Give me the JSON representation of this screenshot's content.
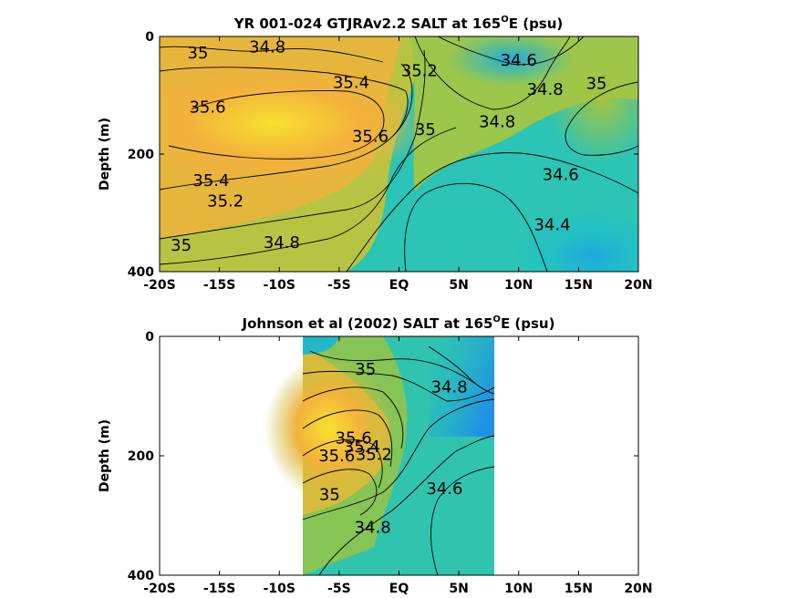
{
  "chart_data": [
    {
      "type": "heatmap",
      "title_main": "YR 001-024 GTJRAv2.2 SALT at 165",
      "title_sup": "O",
      "title_tail": "E (psu)",
      "ylabel": "Depth (m)",
      "xlabel": "",
      "x_ticks": [
        "-20S",
        "-15S",
        "-10S",
        "-5S",
        "EQ",
        "5N",
        "10N",
        "15N",
        "20N"
      ],
      "x_tick_values": [
        -20,
        -15,
        -10,
        -5,
        0,
        5,
        10,
        15,
        20
      ],
      "y_ticks": [
        "0",
        "200",
        "400"
      ],
      "y_tick_values": [
        0,
        200,
        400
      ],
      "xlim": [
        -20,
        20
      ],
      "ylim": [
        0,
        400
      ],
      "y_reversed": true,
      "data_lon_range": [
        -20,
        20
      ],
      "colormap": [
        "#1e90e8",
        "#21b8c8",
        "#2ac6a8",
        "#7ec85a",
        "#c4c03a",
        "#f0b03a",
        "#f8e030"
      ],
      "salinity_scale": [
        34.2,
        35.9
      ],
      "contour_levels": [
        34.4,
        34.6,
        34.8,
        35,
        35.2,
        35.4,
        35.6
      ],
      "contour_labels": [
        {
          "text": "35",
          "lon": -16.8,
          "depth": 28
        },
        {
          "text": "34.8",
          "lon": -11,
          "depth": 18
        },
        {
          "text": "35.6",
          "lon": -16,
          "depth": 120
        },
        {
          "text": "35.4",
          "lon": -4,
          "depth": 78
        },
        {
          "text": "35.2",
          "lon": 1.7,
          "depth": 58
        },
        {
          "text": "35.6",
          "lon": -2.4,
          "depth": 170
        },
        {
          "text": "35",
          "lon": 2.2,
          "depth": 158
        },
        {
          "text": "34.6",
          "lon": 10,
          "depth": 40
        },
        {
          "text": "34.8",
          "lon": 12.2,
          "depth": 90
        },
        {
          "text": "35",
          "lon": 16.5,
          "depth": 80
        },
        {
          "text": "34.8",
          "lon": 8.2,
          "depth": 145
        },
        {
          "text": "35.4",
          "lon": -15.7,
          "depth": 245
        },
        {
          "text": "35.2",
          "lon": -14.5,
          "depth": 280
        },
        {
          "text": "34.6",
          "lon": 13.5,
          "depth": 235
        },
        {
          "text": "34.4",
          "lon": 12.8,
          "depth": 320
        },
        {
          "text": "35",
          "lon": -18.2,
          "depth": 355
        },
        {
          "text": "34.8",
          "lon": -9.8,
          "depth": 350
        }
      ]
    },
    {
      "type": "heatmap",
      "title_main": "Johnson et al (2002) SALT at 165",
      "title_sup": "O",
      "title_tail": "E (psu)",
      "ylabel": "Depth (m)",
      "xlabel": "",
      "x_ticks": [
        "-20S",
        "-15S",
        "-10S",
        "-5S",
        "EQ",
        "5N",
        "10N",
        "15N",
        "20N"
      ],
      "x_tick_values": [
        -20,
        -15,
        -10,
        -5,
        0,
        5,
        10,
        15,
        20
      ],
      "y_ticks": [
        "0",
        "200",
        "400"
      ],
      "y_tick_values": [
        0,
        200,
        400
      ],
      "xlim": [
        -20,
        20
      ],
      "ylim": [
        0,
        400
      ],
      "y_reversed": true,
      "data_lon_range": [
        -8,
        8
      ],
      "colormap": [
        "#1e90e8",
        "#21b8c8",
        "#2ac6a8",
        "#7ec85a",
        "#c4c03a",
        "#f0b03a",
        "#f8e030"
      ],
      "salinity_scale": [
        34.2,
        35.9
      ],
      "contour_levels": [
        34.4,
        34.6,
        34.8,
        35,
        35.2,
        35.4,
        35.6
      ],
      "contour_labels": [
        {
          "text": "35",
          "lon": -2.8,
          "depth": 55
        },
        {
          "text": "34.8",
          "lon": 4.2,
          "depth": 85
        },
        {
          "text": "35.6",
          "lon": -3.8,
          "depth": 170
        },
        {
          "text": "35.4",
          "lon": -3.1,
          "depth": 185
        },
        {
          "text": "35.2",
          "lon": -2.1,
          "depth": 198
        },
        {
          "text": "35.6",
          "lon": -5.2,
          "depth": 200
        },
        {
          "text": "34.6",
          "lon": 3.8,
          "depth": 255
        },
        {
          "text": "35",
          "lon": -5.8,
          "depth": 265
        },
        {
          "text": "34.8",
          "lon": -2.2,
          "depth": 320
        }
      ]
    }
  ]
}
